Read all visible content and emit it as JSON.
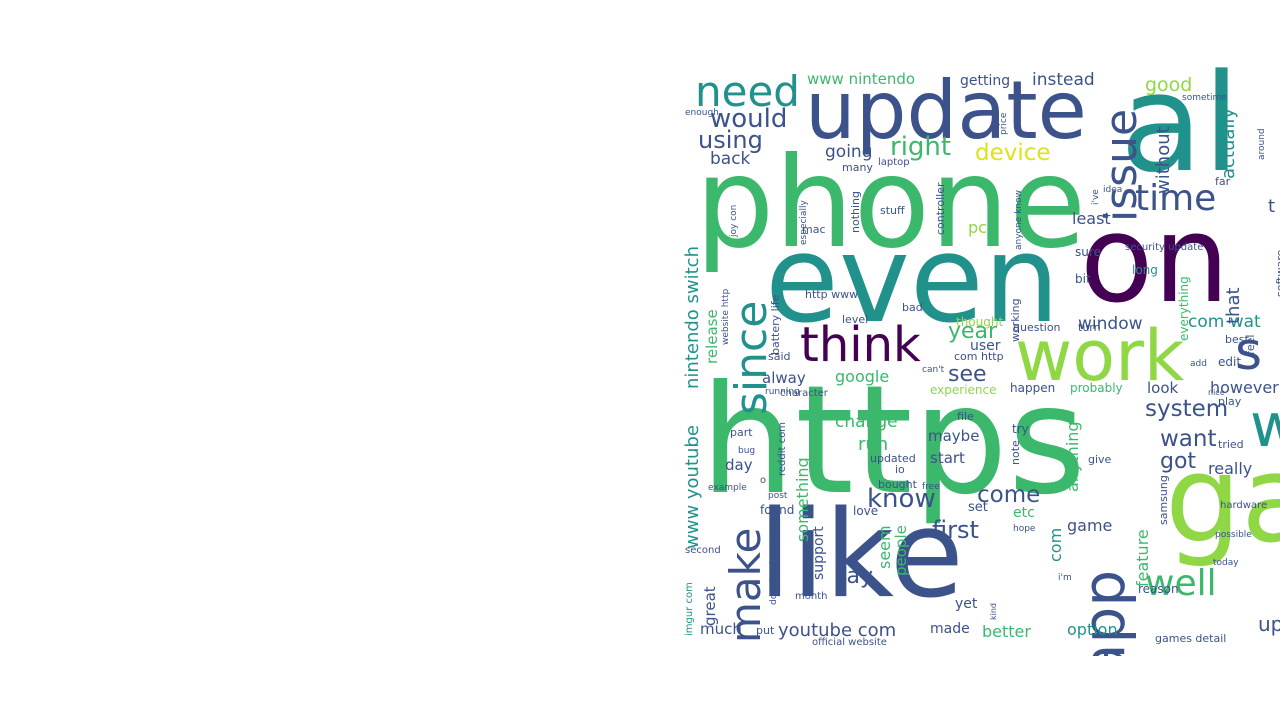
{
  "cloud": {
    "palette": {
      "dark_purple": "#440154",
      "indigo": "#3b528b",
      "teal": "#21918c",
      "green": "#3bb86b",
      "lime": "#8fd744",
      "yellow": "#dde318"
    },
    "words": [
      {
        "text": "https",
        "color": "#3bb86b"
      },
      {
        "text": "phone",
        "color": "#3bb86b"
      },
      {
        "text": "even",
        "color": "#21918c"
      },
      {
        "text": "like",
        "color": "#3b528b"
      },
      {
        "text": "update",
        "color": "#3b528b"
      },
      {
        "text": "al",
        "color": "#21918c"
      },
      {
        "text": "on",
        "color": "#440154"
      },
      {
        "text": "work",
        "color": "#8fd744"
      },
      {
        "text": "ga",
        "color": "#8fd744"
      },
      {
        "text": "app",
        "color": "#3b528b"
      },
      {
        "text": "think",
        "color": "#440154"
      },
      {
        "text": "since",
        "color": "#21918c"
      },
      {
        "text": "issue",
        "color": "#3b528b"
      },
      {
        "text": "time",
        "color": "#3b528b"
      },
      {
        "text": "need",
        "color": "#21918c"
      },
      {
        "text": "make",
        "color": "#3b528b"
      },
      {
        "text": "well",
        "color": "#3bb86b"
      },
      {
        "text": "s",
        "color": "#3b528b"
      },
      {
        "text": "w",
        "color": "#21918c"
      },
      {
        "text": "would",
        "color": "#3b528b"
      },
      {
        "text": "right",
        "color": "#3bb86b"
      },
      {
        "text": "device",
        "color": "#dde318"
      },
      {
        "text": "using",
        "color": "#3b528b"
      },
      {
        "text": "know",
        "color": "#3b528b"
      },
      {
        "text": "first",
        "color": "#3b528b"
      },
      {
        "text": "come",
        "color": "#3b528b"
      },
      {
        "text": "system",
        "color": "#3b528b"
      },
      {
        "text": "want",
        "color": "#3b528b"
      },
      {
        "text": "got",
        "color": "#3b528b"
      },
      {
        "text": "year",
        "color": "#3bb86b"
      },
      {
        "text": "see",
        "color": "#3b528b"
      },
      {
        "text": "say",
        "color": "#3b528b"
      },
      {
        "text": "youtube com",
        "color": "#3b528b"
      },
      {
        "text": "nintendo switch",
        "color": "#21918c"
      },
      {
        "text": "www youtube",
        "color": "#21918c"
      },
      {
        "text": "good",
        "color": "#8fd744"
      },
      {
        "text": "without",
        "color": "#3b528b"
      },
      {
        "text": "actually",
        "color": "#21918c"
      },
      {
        "text": "going",
        "color": "#3b528b"
      },
      {
        "text": "back",
        "color": "#3b528b"
      },
      {
        "text": "instead",
        "color": "#3b528b"
      },
      {
        "text": "www nintendo",
        "color": "#3bb86b"
      },
      {
        "text": "getting",
        "color": "#3b528b"
      },
      {
        "text": "window",
        "color": "#3b528b"
      },
      {
        "text": "com wat",
        "color": "#21918c"
      },
      {
        "text": "that",
        "color": "#3b528b"
      },
      {
        "text": "least",
        "color": "#3b528b"
      },
      {
        "text": "pc",
        "color": "#8fd744"
      },
      {
        "text": "google",
        "color": "#3bb86b"
      },
      {
        "text": "alway",
        "color": "#3b528b"
      },
      {
        "text": "change",
        "color": "#3bb86b"
      },
      {
        "text": "run",
        "color": "#3bb86b"
      },
      {
        "text": "maybe",
        "color": "#3b528b"
      },
      {
        "text": "start",
        "color": "#3b528b"
      },
      {
        "text": "day",
        "color": "#3b528b"
      },
      {
        "text": "really",
        "color": "#3b528b"
      },
      {
        "text": "however",
        "color": "#3b528b"
      },
      {
        "text": "look",
        "color": "#3b528b"
      },
      {
        "text": "anything",
        "color": "#3bb86b"
      },
      {
        "text": "something",
        "color": "#3bb86b"
      },
      {
        "text": "release",
        "color": "#3bb86b"
      },
      {
        "text": "user",
        "color": "#3b528b"
      },
      {
        "text": "game",
        "color": "#3b528b"
      },
      {
        "text": "com",
        "color": "#21918c"
      },
      {
        "text": "etc",
        "color": "#3bb86b"
      },
      {
        "text": "feature",
        "color": "#3bb86b"
      },
      {
        "text": "seem",
        "color": "#3bb86b"
      },
      {
        "text": "people",
        "color": "#3bb86b"
      },
      {
        "text": "support",
        "color": "#3b528b"
      },
      {
        "text": "great",
        "color": "#3b528b"
      },
      {
        "text": "much",
        "color": "#3b528b"
      },
      {
        "text": "made",
        "color": "#3b528b"
      },
      {
        "text": "better",
        "color": "#3bb86b"
      },
      {
        "text": "option",
        "color": "#21918c"
      },
      {
        "text": "up",
        "color": "#3b528b"
      },
      {
        "text": "yet",
        "color": "#3b528b"
      },
      {
        "text": "set",
        "color": "#3b528b"
      },
      {
        "text": "love",
        "color": "#3b528b"
      },
      {
        "text": "found",
        "color": "#3b528b"
      },
      {
        "text": "thought",
        "color": "#8fd744"
      },
      {
        "text": "bad",
        "color": "#3b528b"
      },
      {
        "text": "http www",
        "color": "#3b528b"
      },
      {
        "text": "level",
        "color": "#3b528b"
      },
      {
        "text": "said",
        "color": "#3b528b"
      },
      {
        "text": "com http",
        "color": "#3b528b"
      },
      {
        "text": "experience",
        "color": "#8fd744"
      },
      {
        "text": "happen",
        "color": "#3b528b"
      },
      {
        "text": "probably",
        "color": "#3bb86b"
      },
      {
        "text": "question",
        "color": "#3b528b"
      },
      {
        "text": "working",
        "color": "#3b528b"
      },
      {
        "text": "bit",
        "color": "#3b528b"
      },
      {
        "text": "sure",
        "color": "#3b528b"
      },
      {
        "text": "long",
        "color": "#21918c"
      },
      {
        "text": "turn",
        "color": "#3b528b"
      },
      {
        "text": "everything",
        "color": "#3bb86b"
      },
      {
        "text": "best",
        "color": "#3b528b"
      },
      {
        "text": "edit",
        "color": "#3b528b"
      },
      {
        "text": "add",
        "color": "#3b528b"
      },
      {
        "text": "nice",
        "color": "#3b528b"
      },
      {
        "text": "play",
        "color": "#3b528b"
      },
      {
        "text": "tried",
        "color": "#3b528b"
      },
      {
        "text": "try",
        "color": "#3b528b"
      },
      {
        "text": "note",
        "color": "#3b528b"
      },
      {
        "text": "give",
        "color": "#3b528b"
      },
      {
        "text": "file",
        "color": "#3b528b"
      },
      {
        "text": "updated",
        "color": "#3b528b"
      },
      {
        "text": "io",
        "color": "#3b528b"
      },
      {
        "text": "bought",
        "color": "#3b528b"
      },
      {
        "text": "free",
        "color": "#3b528b"
      },
      {
        "text": "part",
        "color": "#3b528b"
      },
      {
        "text": "reddit com",
        "color": "#3b528b"
      },
      {
        "text": "bug",
        "color": "#3b528b"
      },
      {
        "text": "example",
        "color": "#3b528b"
      },
      {
        "text": "post",
        "color": "#3b528b"
      },
      {
        "text": "samsung",
        "color": "#3b528b"
      },
      {
        "text": "hope",
        "color": "#3b528b"
      },
      {
        "text": "i'm",
        "color": "#3b528b"
      },
      {
        "text": "possible",
        "color": "#3b528b"
      },
      {
        "text": "today",
        "color": "#3b528b"
      },
      {
        "text": "hardware",
        "color": "#3b528b"
      },
      {
        "text": "reason",
        "color": "#3b528b"
      },
      {
        "text": "kind",
        "color": "#3b528b"
      },
      {
        "text": "month",
        "color": "#3b528b"
      },
      {
        "text": "download",
        "color": "#3b528b"
      },
      {
        "text": "put",
        "color": "#3b528b"
      },
      {
        "text": "official website",
        "color": "#3b528b"
      },
      {
        "text": "games detail",
        "color": "#3b528b"
      },
      {
        "text": "imgur com",
        "color": "#21918c"
      },
      {
        "text": "second",
        "color": "#3b528b"
      },
      {
        "text": "battery life",
        "color": "#3b528b"
      },
      {
        "text": "website http",
        "color": "#3b528b"
      },
      {
        "text": "character",
        "color": "#3b528b"
      },
      {
        "text": "running",
        "color": "#3b528b"
      },
      {
        "text": "can't",
        "color": "#3b528b"
      },
      {
        "text": "mac",
        "color": "#3b528b"
      },
      {
        "text": "stuff",
        "color": "#3b528b"
      },
      {
        "text": "controller",
        "color": "#3b528b"
      },
      {
        "text": "nothing",
        "color": "#3b528b"
      },
      {
        "text": "many",
        "color": "#3b528b"
      },
      {
        "text": "laptop",
        "color": "#3b528b"
      },
      {
        "text": "especially",
        "color": "#3b528b"
      },
      {
        "text": "joy con",
        "color": "#3b528b"
      },
      {
        "text": "anyone know",
        "color": "#3b528b"
      },
      {
        "text": "idea",
        "color": "#3b528b"
      },
      {
        "text": "i've",
        "color": "#3b528b"
      },
      {
        "text": "far",
        "color": "#3b528b"
      },
      {
        "text": "security update",
        "color": "#3b528b"
      },
      {
        "text": "feel",
        "color": "#3b528b"
      },
      {
        "text": "software",
        "color": "#3b528b"
      },
      {
        "text": "sometime",
        "color": "#3b528b"
      },
      {
        "text": "around",
        "color": "#3b528b"
      },
      {
        "text": "enough",
        "color": "#3b528b"
      },
      {
        "text": "price",
        "color": "#3b528b"
      },
      {
        "text": "t",
        "color": "#3b528b"
      },
      {
        "text": "o",
        "color": "#3b528b"
      }
    ]
  }
}
